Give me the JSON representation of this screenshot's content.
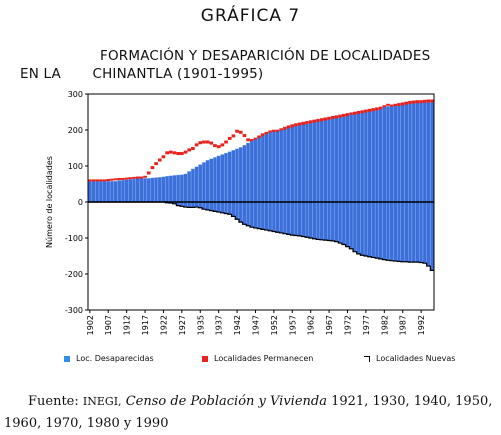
{
  "figure_label": "GRÁFICA 7",
  "title_line1": "FORMACIÓN Y DESAPARICIÓN DE LOCALIDADES",
  "title_line2_prefix": "EN LA",
  "title_line2_rest": "CHINANTLA (1901-1995)",
  "colors": {
    "desaparecidas": "#2f8fe8",
    "desaparecidas_fill": "#3d6fd9",
    "permanecen": "#e8231e",
    "nuevas": "#000000"
  },
  "legend": {
    "desaparecidas": "Loc. Desaparecidas",
    "permanecen": "Localidades Permanecen",
    "nuevas": "Localidades Nuevas"
  },
  "source": {
    "label": "Fuente:",
    "org": "INEGI,",
    "title": "Censo de Población y Vivienda",
    "years": "1921, 1930, 1940, 1950, 1960, 1970, 1980 y 1990"
  },
  "chart_data": {
    "type": "bar",
    "ylabel": "Número de localidades",
    "ylim": [
      -300,
      300
    ],
    "yticks": [
      "300",
      "200",
      "100",
      "0",
      "-100",
      "-200",
      "-300"
    ],
    "x_tick_labels": [
      "1902",
      "1907",
      "1912",
      "1917",
      "1922",
      "1927",
      "1935",
      "1937",
      "1942",
      "1947",
      "1952",
      "1957",
      "1962",
      "1967",
      "1972",
      "1977",
      "1982",
      "1987",
      "1992"
    ],
    "x": [
      1902,
      1903,
      1904,
      1905,
      1906,
      1907,
      1908,
      1909,
      1910,
      1911,
      1912,
      1913,
      1914,
      1915,
      1916,
      1917,
      1918,
      1919,
      1920,
      1921,
      1922,
      1923,
      1924,
      1925,
      1926,
      1927,
      1928,
      1929,
      1930,
      1931,
      1932,
      1933,
      1934,
      1935,
      1936,
      1937,
      1938,
      1939,
      1940,
      1941,
      1942,
      1943,
      1944,
      1945,
      1946,
      1947,
      1948,
      1949,
      1950,
      1951,
      1952,
      1953,
      1954,
      1955,
      1956,
      1957,
      1958,
      1959,
      1960,
      1961,
      1962,
      1963,
      1964,
      1965,
      1966,
      1967,
      1968,
      1969,
      1970,
      1971,
      1972,
      1973,
      1974,
      1975,
      1976,
      1977,
      1978,
      1979,
      1980,
      1981,
      1982,
      1983,
      1984,
      1985,
      1986,
      1987,
      1988,
      1989,
      1990,
      1991,
      1992,
      1993,
      1994,
      1995
    ],
    "series": [
      {
        "name": "Loc. Desaparecidas",
        "values": [
          58,
          58,
          58,
          58,
          58,
          58,
          58,
          58,
          60,
          61,
          62,
          63,
          64,
          66,
          66,
          66,
          66,
          67,
          68,
          69,
          70,
          72,
          73,
          74,
          75,
          76,
          78,
          85,
          92,
          98,
          104,
          110,
          116,
          120,
          124,
          128,
          132,
          136,
          140,
          144,
          148,
          152,
          158,
          164,
          170,
          176,
          182,
          188,
          192,
          196,
          198,
          198,
          202,
          206,
          210,
          213,
          216,
          218,
          220,
          222,
          224,
          226,
          228,
          230,
          232,
          234,
          236,
          238,
          240,
          242,
          244,
          246,
          248,
          250,
          252,
          254,
          256,
          258,
          260,
          262,
          264,
          266,
          268,
          270,
          272,
          274,
          276,
          278,
          279,
          280,
          280,
          281,
          282,
          282
        ]
      },
      {
        "name": "Localidades Permanecen",
        "values": [
          60,
          60,
          60,
          60,
          60,
          61,
          62,
          63,
          64,
          64,
          65,
          66,
          67,
          68,
          68,
          70,
          82,
          97,
          108,
          118,
          127,
          138,
          140,
          138,
          136,
          136,
          140,
          146,
          150,
          160,
          166,
          168,
          168,
          165,
          158,
          155,
          160,
          168,
          178,
          185,
          198,
          195,
          186,
          174,
          172,
          172,
          175,
          180,
          186,
          190,
          192,
          194,
          196,
          198,
          200,
          203,
          206,
          208,
          210,
          212,
          212,
          213,
          214,
          215,
          216,
          218,
          220,
          222,
          224,
          226,
          232,
          240,
          238,
          236,
          214,
          210,
          210,
          216,
          232,
          254,
          266,
          270,
          268,
          264,
          262,
          261,
          262,
          265,
          268,
          270,
          272,
          270,
          264,
          255
        ]
      },
      {
        "name": "Localidades Nuevas",
        "values": [
          0,
          0,
          0,
          0,
          0,
          0,
          0,
          0,
          0,
          0,
          0,
          0,
          0,
          0,
          0,
          0,
          0,
          0,
          0,
          0,
          0,
          2,
          3,
          5,
          10,
          12,
          14,
          15,
          15,
          14,
          16,
          20,
          22,
          24,
          26,
          28,
          30,
          32,
          34,
          40,
          48,
          56,
          62,
          66,
          70,
          72,
          74,
          76,
          78,
          80,
          82,
          84,
          86,
          88,
          90,
          92,
          93,
          94,
          96,
          98,
          100,
          102,
          104,
          105,
          106,
          107,
          108,
          110,
          114,
          118,
          124,
          130,
          138,
          144,
          148,
          150,
          152,
          154,
          156,
          158,
          160,
          162,
          163,
          164,
          165,
          166,
          166,
          167,
          167,
          167,
          168,
          170,
          178,
          190
        ]
      }
    ],
    "grid": false,
    "legend_position": "bottom"
  }
}
